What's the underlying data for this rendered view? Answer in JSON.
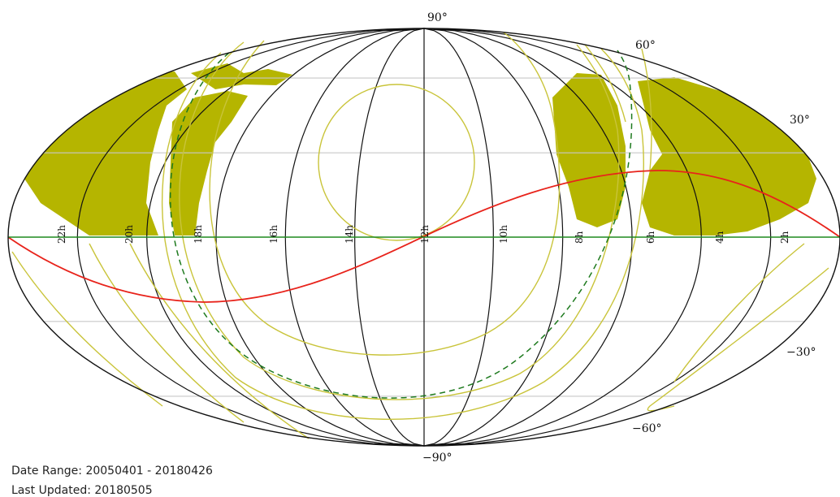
{
  "map": {
    "projection": "Mollweide (equatorial, RA increasing to the left)",
    "center_ra_hours": 12,
    "dec_labels": [
      "90°",
      "60°",
      "30°",
      "−30°",
      "−60°",
      "−90°"
    ],
    "ra_labels": [
      "22h",
      "20h",
      "18h",
      "16h",
      "14h",
      "12h",
      "10h",
      "8h",
      "6h",
      "4h",
      "2h"
    ],
    "colors": {
      "meridians": "#111111",
      "parallels": "#c8c8c8",
      "coverage": "#b5b500",
      "contours": "#c9c43a",
      "ecliptic": "#e8231b",
      "equator": "#1e8a1e",
      "galactic_plane": "#1e7a1e"
    }
  },
  "footer": {
    "date_range": "Date Range: 20050401 - 20180426",
    "last_updated": "Last Updated: 20180505"
  }
}
